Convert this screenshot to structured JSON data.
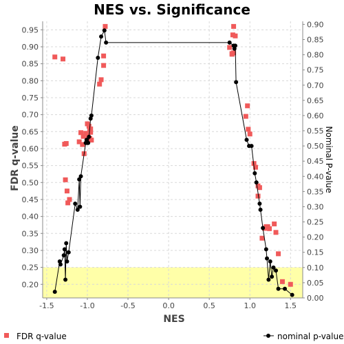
{
  "chart_data": {
    "type": "scatter",
    "title": "NES vs. Significance",
    "xlabel": "NES",
    "ylabel_left": "FDR q-value",
    "ylabel_right": "Nominal P-value",
    "xlim": [
      -1.55,
      1.65
    ],
    "ylim_left": [
      0.16,
      0.975
    ],
    "ylim_right": [
      0.0,
      0.91
    ],
    "x_ticks": [
      -1.5,
      -1.0,
      -0.5,
      0.0,
      0.5,
      1.0,
      1.5
    ],
    "x_tick_labels": [
      "-1.5",
      "-1.0",
      "-0.5",
      "0.0",
      "0.5",
      "1.0",
      "1.5"
    ],
    "left_ticks": [
      0.2,
      0.25,
      0.3,
      0.35,
      0.4,
      0.45,
      0.5,
      0.55,
      0.6,
      0.65,
      0.7,
      0.75,
      0.8,
      0.85,
      0.9,
      0.95
    ],
    "left_tick_labels": [
      "0.20",
      "0.25",
      "0.30",
      "0.35",
      "0.40",
      "0.45",
      "0.50",
      "0.55",
      "0.60",
      "0.65",
      "0.70",
      "0.75",
      "0.80",
      "0.85",
      "0.90",
      "0.95"
    ],
    "right_ticks": [
      0.0,
      0.05,
      0.1,
      0.15,
      0.2,
      0.25,
      0.3,
      0.35,
      0.4,
      0.45,
      0.5,
      0.55,
      0.6,
      0.65,
      0.7,
      0.75,
      0.8,
      0.85,
      0.9
    ],
    "right_tick_labels": [
      "0.00",
      "0.05",
      "0.10",
      "0.15",
      "0.20",
      "0.25",
      "0.30",
      "0.35",
      "0.40",
      "0.45",
      "0.50",
      "0.55",
      "0.60",
      "0.65",
      "0.70",
      "0.75",
      "0.80",
      "0.85",
      "0.90"
    ],
    "highlight_band_fdr": [
      0.16,
      0.25
    ],
    "grid": true,
    "legend_position": "bottom",
    "series": [
      {
        "name": "FDR q-value",
        "axis": "left",
        "marker": "square",
        "color": "#f05a5a",
        "x": [
          -1.4,
          -1.3,
          -1.28,
          -1.26,
          -1.27,
          -1.25,
          -1.24,
          -1.22,
          -1.1,
          -1.08,
          -1.05,
          -1.06,
          -1.04,
          -1.02,
          -1.0,
          -0.98,
          -0.96,
          -0.99,
          -0.97,
          -0.95,
          -0.97,
          -0.96,
          -0.85,
          -0.83,
          -0.8,
          -0.8,
          -0.78,
          0.75,
          0.78,
          0.8,
          0.82,
          0.78,
          0.8,
          0.79,
          0.95,
          0.97,
          0.98,
          1.0,
          1.05,
          1.07,
          1.1,
          1.12,
          1.1,
          1.15,
          1.18,
          1.2,
          1.22,
          1.24,
          1.3,
          1.32,
          1.35,
          1.4,
          1.5
        ],
        "y": [
          0.87,
          0.864,
          0.613,
          0.615,
          0.508,
          0.475,
          0.44,
          0.45,
          0.62,
          0.647,
          0.636,
          0.612,
          0.585,
          0.645,
          0.673,
          0.666,
          0.648,
          0.637,
          0.657,
          0.625,
          0.63,
          0.658,
          0.79,
          0.803,
          0.845,
          0.873,
          0.96,
          0.898,
          0.878,
          0.882,
          0.932,
          0.88,
          0.96,
          0.935,
          0.695,
          0.726,
          0.657,
          0.643,
          0.556,
          0.545,
          0.49,
          0.485,
          0.46,
          0.336,
          0.365,
          0.37,
          0.37,
          0.364,
          0.378,
          0.353,
          0.29,
          0.208,
          0.2
        ]
      },
      {
        "name": "nominal p-value",
        "axis": "right",
        "marker": "circle",
        "color": "#000000",
        "x": [
          -1.4,
          -1.34,
          -1.33,
          -1.29,
          -1.28,
          -1.27,
          -1.26,
          -1.25,
          -1.23,
          -1.15,
          -1.12,
          -1.1,
          -1.09,
          -1.08,
          -1.02,
          -1.01,
          -1.0,
          -0.99,
          -0.98,
          -0.96,
          -0.95,
          -0.87,
          -0.83,
          -0.79,
          -0.77,
          0.75,
          0.8,
          0.81,
          0.82,
          0.83,
          0.96,
          0.99,
          1.02,
          1.06,
          1.08,
          1.12,
          1.13,
          1.16,
          1.2,
          1.21,
          1.23,
          1.25,
          1.27,
          1.29,
          1.32,
          1.35,
          1.43,
          1.52
        ],
        "y": [
          0.02,
          0.12,
          0.11,
          0.14,
          0.16,
          0.06,
          0.18,
          0.12,
          0.15,
          0.31,
          0.29,
          0.39,
          0.3,
          0.4,
          0.51,
          0.52,
          0.51,
          0.51,
          0.53,
          0.59,
          0.6,
          0.79,
          0.86,
          0.88,
          0.84,
          0.84,
          0.83,
          0.82,
          0.83,
          0.71,
          0.52,
          0.5,
          0.5,
          0.41,
          0.38,
          0.31,
          0.29,
          0.23,
          0.16,
          0.13,
          0.06,
          0.12,
          0.07,
          0.1,
          0.09,
          0.03,
          0.03,
          0.01
        ]
      }
    ]
  }
}
